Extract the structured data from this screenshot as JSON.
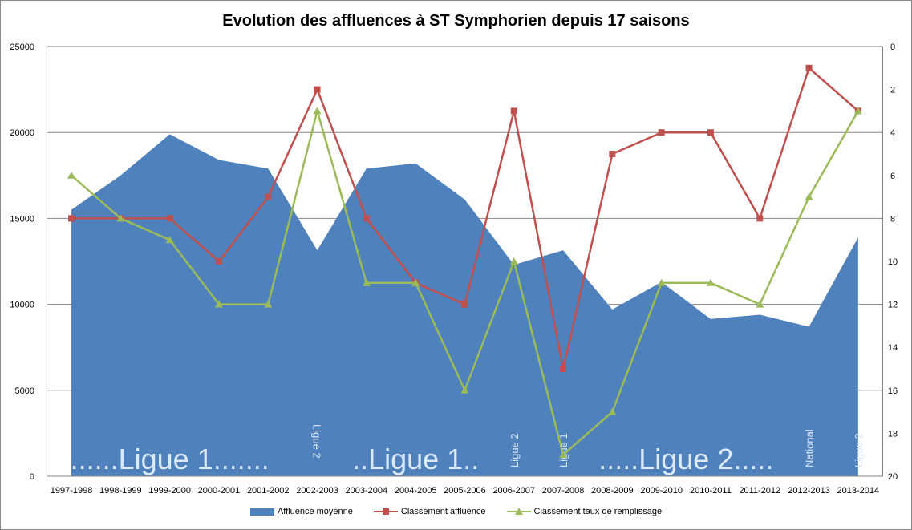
{
  "chart_data": {
    "type": "area+line",
    "title": "Evolution des affluences à ST Symphorien depuis 17 saisons",
    "categories": [
      "1997-1998",
      "1998-1999",
      "1999-2000",
      "2000-2001",
      "2001-2002",
      "2002-2003",
      "2003-2004",
      "2004-2005",
      "2005-2006",
      "2006-2007",
      "2007-2008",
      "2008-2009",
      "2009-2010",
      "2010-2011",
      "2011-2012",
      "2012-2013",
      "2013-2014"
    ],
    "y_left": {
      "range": [
        0,
        25000
      ],
      "ticks": [
        0,
        5000,
        10000,
        15000,
        20000,
        25000
      ]
    },
    "y_right": {
      "range": [
        0,
        20
      ],
      "reversed": true,
      "ticks": [
        0,
        2,
        4,
        6,
        8,
        10,
        12,
        14,
        16,
        18,
        20
      ]
    },
    "grid": true,
    "legend_position": "bottom",
    "series": [
      {
        "name": "Affluence moyenne",
        "type": "area",
        "axis": "left",
        "color": "#4f81bd",
        "values": [
          15500,
          17500,
          19900,
          18400,
          17900,
          13150,
          17900,
          18200,
          16100,
          12300,
          13150,
          9700,
          11300,
          9150,
          9400,
          8700,
          13900
        ]
      },
      {
        "name": "Classement affluence",
        "type": "line",
        "axis": "right",
        "color": "#c0504d",
        "marker": "square",
        "values": [
          8,
          8,
          8,
          10,
          7,
          2,
          8,
          11,
          12,
          3,
          15,
          5,
          4,
          4,
          8,
          1,
          3
        ]
      },
      {
        "name": "Classement taux de remplissage",
        "type": "line",
        "axis": "right",
        "color": "#9bbb59",
        "marker": "triangle",
        "values": [
          6,
          8,
          9,
          12,
          12,
          3,
          11,
          11,
          16,
          10,
          19,
          17,
          11,
          11,
          12,
          7,
          3
        ]
      }
    ],
    "annotations": [
      {
        "text": "......Ligue 1.......",
        "from": 0,
        "to": 4,
        "vertical": false
      },
      {
        "text": "Ligue 2",
        "at": 5,
        "vertical": true,
        "dir": "down"
      },
      {
        "text": "..Ligue 1..",
        "from": 6,
        "to": 8,
        "vertical": false
      },
      {
        "text": "Ligue 2",
        "at": 9,
        "vertical": true,
        "dir": "up"
      },
      {
        "text": "Ligue 1",
        "at": 10,
        "vertical": true,
        "dir": "up"
      },
      {
        "text": ".....Ligue 2.....",
        "from": 11,
        "to": 14,
        "vertical": false
      },
      {
        "text": "National",
        "at": 15,
        "vertical": true,
        "dir": "up"
      },
      {
        "text": "Ligue 2",
        "at": 16,
        "vertical": true,
        "dir": "up"
      }
    ]
  }
}
